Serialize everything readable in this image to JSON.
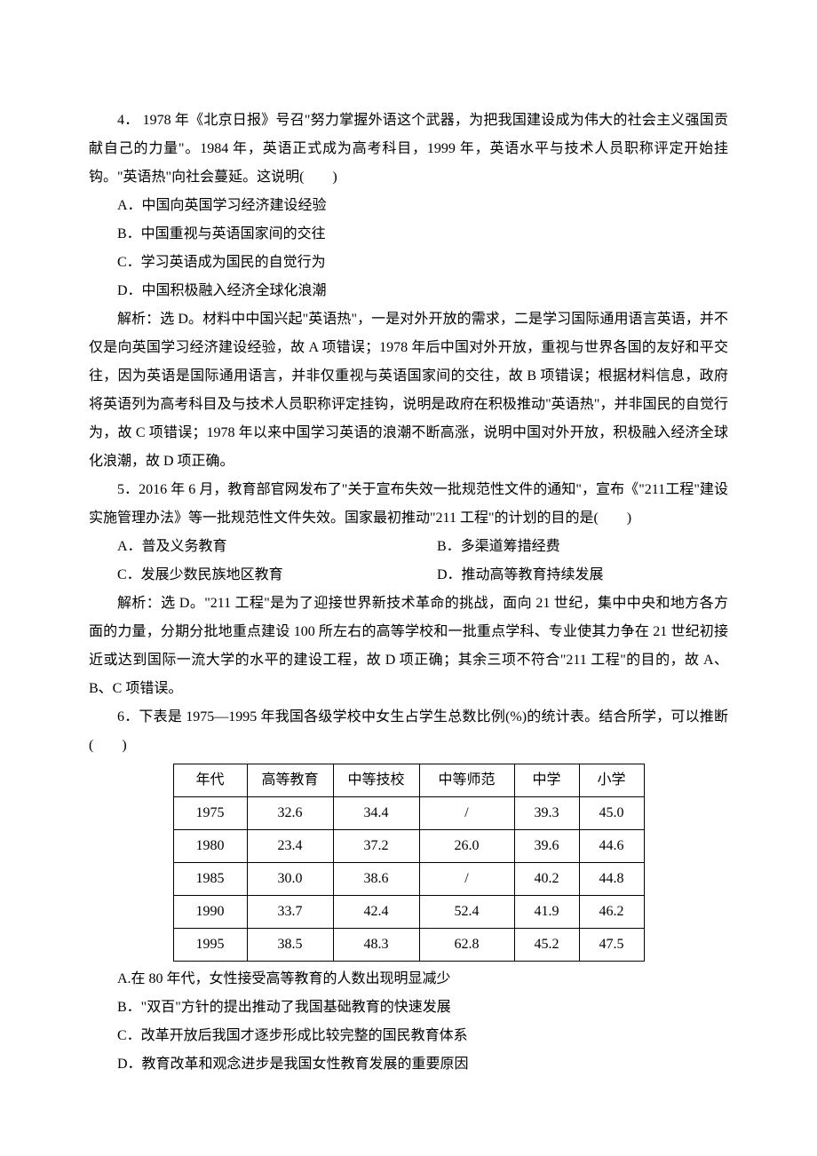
{
  "q4": {
    "stem": "4． 1978 年《北京日报》号召\"努力掌握外语这个武器，为把我国建设成为伟大的社会主义强国贡献自己的力量\"。1984 年，英语正式成为高考科目，1999 年，英语水平与技术人员职称评定开始挂钩。\"英语热\"向社会蔓延。这说明(　　)",
    "a": "A．中国向英国学习经济建设经验",
    "b": "B．中国重视与英语国家间的交往",
    "c": "C．学习英语成为国民的自觉行为",
    "d": "D．中国积极融入经济全球化浪潮",
    "ans": "解析：选 D。材料中中国兴起\"英语热\"，一是对外开放的需求，二是学习国际通用语言英语，并不仅是向英国学习经济建设经验，故 A 项错误；1978 年后中国对外开放，重视与世界各国的友好和平交往，因为英语是国际通用语言，并非仅重视与英语国家间的交往，故 B 项错误；根据材料信息，政府将英语列为高考科目及与技术人员职称评定挂钩，说明是政府在积极推动\"英语热\"，并非国民的自觉行为，故 C 项错误；1978 年以来中国学习英语的浪潮不断高涨，说明中国对外开放，积极融入经济全球化浪潮，故 D 项正确。"
  },
  "q5": {
    "stem": "5．2016 年 6 月，教育部官网发布了\"关于宣布失效一批规范性文件的通知\"，宣布《\"211工程\"建设实施管理办法》等一批规范性文件失效。国家最初推动\"211 工程\"的计划的目的是(　　)",
    "a": "A．普及义务教育",
    "b": "B．多渠道筹措经费",
    "c": "C．发展少数民族地区教育",
    "d": "D．推动高等教育持续发展",
    "ans": "解析：选 D。\"211 工程\"是为了迎接世界新技术革命的挑战，面向 21 世纪，集中中央和地方各方面的力量，分期分批地重点建设 100 所左右的高等学校和一批重点学科、专业使其力争在 21 世纪初接近或达到国际一流大学的水平的建设工程，故 D 项正确；其余三项不符合\"211 工程\"的目的，故 A、B、C 项错误。"
  },
  "q6": {
    "stem": "6．下表是 1975—1995 年我国各级学校中女生占学生总数比例(%)的统计表。结合所学，可以推断(　　)",
    "table": {
      "headers": [
        "年代",
        "高等教育",
        "中等技校",
        "中等师范",
        "中学",
        "小学"
      ],
      "rows": [
        [
          "1975",
          "32.6",
          "34.4",
          "/",
          "39.3",
          "45.0"
        ],
        [
          "1980",
          "23.4",
          "37.2",
          "26.0",
          "39.6",
          "44.6"
        ],
        [
          "1985",
          "30.0",
          "38.6",
          "/",
          "40.2",
          "44.8"
        ],
        [
          "1990",
          "33.7",
          "42.4",
          "52.4",
          "41.9",
          "46.2"
        ],
        [
          "1995",
          "38.5",
          "48.3",
          "62.8",
          "45.2",
          "47.5"
        ]
      ]
    },
    "a": "A.在 80 年代，女性接受高等教育的人数出现明显减少",
    "b": "B．\"双百\"方针的提出推动了我国基础教育的快速发展",
    "c": "C．改革开放后我国才逐步形成比较完整的国民教育体系",
    "d": "D．教育改革和观念进步是我国女性教育发展的重要原因"
  }
}
